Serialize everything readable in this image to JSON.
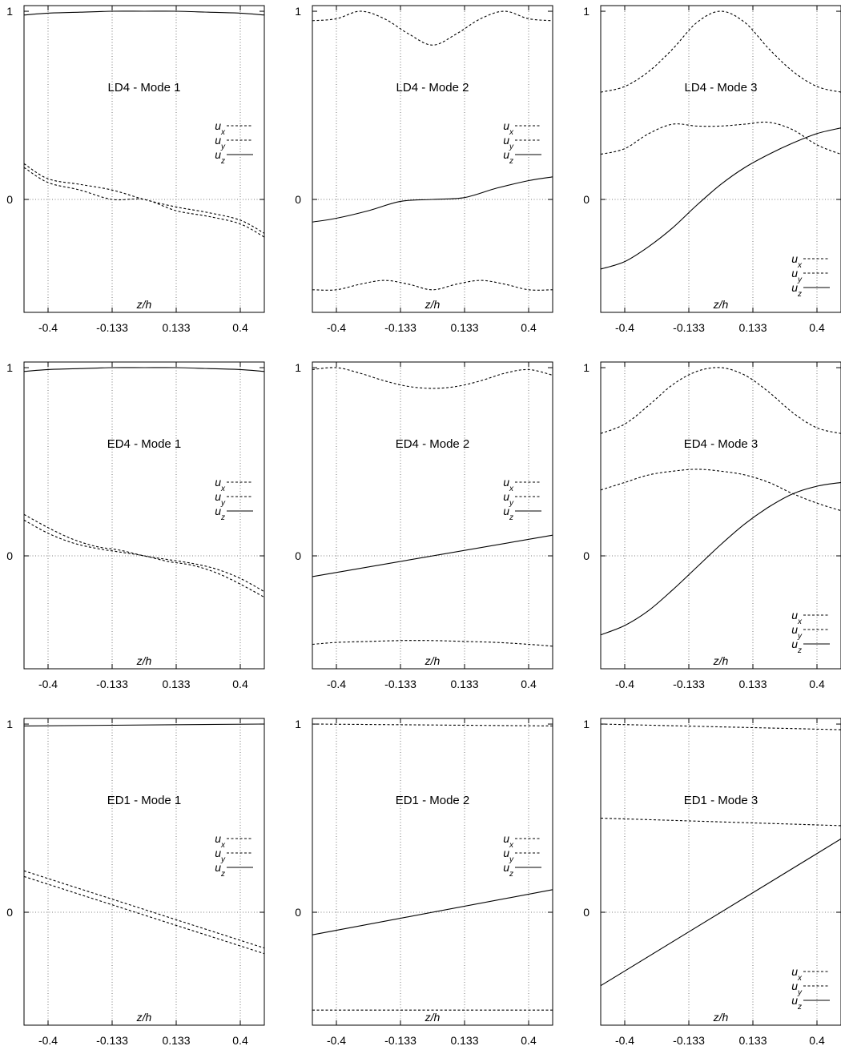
{
  "chart_data": [
    {
      "type": "line",
      "title": "LD4 - Mode 1",
      "xlabel": "z/h",
      "xlim": [
        -0.5,
        0.5
      ],
      "ylim": [
        -0.6,
        1.03
      ],
      "xticks": [
        "-0.4",
        "-0.133",
        "0.133",
        "0.4"
      ],
      "yticks": [
        "0",
        "1"
      ],
      "grid": true,
      "legend": {
        "placement": "right-middle",
        "entries": [
          {
            "base": "u",
            "sub": "x"
          },
          {
            "base": "u",
            "sub": "y"
          },
          {
            "base": "u",
            "sub": "z"
          }
        ]
      },
      "series": [
        {
          "style": "dashed",
          "x": [
            -0.5,
            -0.4,
            -0.267,
            -0.133,
            0.0,
            0.133,
            0.267,
            0.4,
            0.5
          ],
          "y": [
            0.19,
            0.11,
            0.08,
            0.05,
            0.0,
            -0.04,
            -0.07,
            -0.11,
            -0.18
          ]
        },
        {
          "style": "dashed",
          "x": [
            -0.5,
            -0.4,
            -0.267,
            -0.133,
            0.0,
            0.133,
            0.267,
            0.4,
            0.5
          ],
          "y": [
            0.17,
            0.09,
            0.05,
            0.0,
            0.0,
            -0.06,
            -0.09,
            -0.13,
            -0.2
          ]
        },
        {
          "style": "solid",
          "x": [
            -0.5,
            -0.4,
            -0.267,
            -0.133,
            0.0,
            0.133,
            0.267,
            0.4,
            0.5
          ],
          "y": [
            0.98,
            0.99,
            0.995,
            1.0,
            1.0,
            1.0,
            0.995,
            0.99,
            0.98
          ]
        }
      ]
    },
    {
      "type": "line",
      "title": "LD4 - Mode 2",
      "xlabel": "z/h",
      "xlim": [
        -0.5,
        0.5
      ],
      "ylim": [
        -0.6,
        1.03
      ],
      "xticks": [
        "-0.4",
        "-0.133",
        "0.133",
        "0.4"
      ],
      "yticks": [
        "0",
        "1"
      ],
      "grid": true,
      "legend": {
        "placement": "right-middle",
        "entries": [
          {
            "base": "u",
            "sub": "x"
          },
          {
            "base": "u",
            "sub": "y"
          },
          {
            "base": "u",
            "sub": "z"
          }
        ]
      },
      "series": [
        {
          "style": "dashed",
          "x": [
            -0.5,
            -0.4,
            -0.3,
            -0.2,
            -0.1,
            0.0,
            0.1,
            0.2,
            0.3,
            0.4,
            0.5
          ],
          "y": [
            0.95,
            0.96,
            1.0,
            0.96,
            0.88,
            0.82,
            0.88,
            0.96,
            1.0,
            0.96,
            0.95
          ]
        },
        {
          "style": "dashed",
          "x": [
            -0.5,
            -0.4,
            -0.3,
            -0.2,
            -0.1,
            0.0,
            0.1,
            0.2,
            0.3,
            0.4,
            0.5
          ],
          "y": [
            -0.48,
            -0.48,
            -0.45,
            -0.43,
            -0.45,
            -0.48,
            -0.45,
            -0.43,
            -0.45,
            -0.48,
            -0.48
          ]
        },
        {
          "style": "solid",
          "x": [
            -0.5,
            -0.4,
            -0.267,
            -0.133,
            0.0,
            0.133,
            0.267,
            0.4,
            0.5
          ],
          "y": [
            -0.12,
            -0.1,
            -0.06,
            -0.01,
            0.0,
            0.01,
            0.06,
            0.1,
            0.12
          ]
        }
      ]
    },
    {
      "type": "line",
      "title": "LD4 - Mode 3",
      "xlabel": "z/h",
      "xlim": [
        -0.5,
        0.5
      ],
      "ylim": [
        -0.6,
        1.03
      ],
      "xticks": [
        "-0.4",
        "-0.133",
        "0.133",
        "0.4"
      ],
      "yticks": [
        "0",
        "1"
      ],
      "grid": true,
      "legend": {
        "placement": "bottom-right",
        "entries": [
          {
            "base": "u",
            "sub": "x"
          },
          {
            "base": "u",
            "sub": "y"
          },
          {
            "base": "u",
            "sub": "z"
          }
        ]
      },
      "series": [
        {
          "style": "dashed",
          "x": [
            -0.5,
            -0.4,
            -0.3,
            -0.2,
            -0.1,
            0.0,
            0.1,
            0.2,
            0.3,
            0.4,
            0.5
          ],
          "y": [
            0.57,
            0.6,
            0.68,
            0.8,
            0.94,
            1.0,
            0.94,
            0.8,
            0.68,
            0.6,
            0.57
          ]
        },
        {
          "style": "dashed",
          "x": [
            -0.5,
            -0.4,
            -0.3,
            -0.2,
            -0.1,
            0.0,
            0.1,
            0.2,
            0.3,
            0.4,
            0.5
          ],
          "y": [
            0.24,
            0.27,
            0.35,
            0.4,
            0.39,
            0.39,
            0.4,
            0.41,
            0.37,
            0.29,
            0.24
          ]
        },
        {
          "style": "solid",
          "x": [
            -0.5,
            -0.4,
            -0.3,
            -0.2,
            -0.1,
            0.0,
            0.1,
            0.2,
            0.3,
            0.4,
            0.5
          ],
          "y": [
            -0.37,
            -0.33,
            -0.25,
            -0.15,
            -0.03,
            0.08,
            0.17,
            0.24,
            0.3,
            0.35,
            0.38
          ]
        }
      ]
    },
    {
      "type": "line",
      "title": "ED4 - Mode 1",
      "xlabel": "z/h",
      "xlim": [
        -0.5,
        0.5
      ],
      "ylim": [
        -0.6,
        1.03
      ],
      "xticks": [
        "-0.4",
        "-0.133",
        "0.133",
        "0.4"
      ],
      "yticks": [
        "0",
        "1"
      ],
      "grid": true,
      "legend": {
        "placement": "right-middle",
        "entries": [
          {
            "base": "u",
            "sub": "x"
          },
          {
            "base": "u",
            "sub": "y"
          },
          {
            "base": "u",
            "sub": "z"
          }
        ]
      },
      "series": [
        {
          "style": "dashed",
          "x": [
            -0.5,
            -0.4,
            -0.3,
            -0.2,
            -0.1,
            0.0,
            0.1,
            0.2,
            0.3,
            0.4,
            0.5
          ],
          "y": [
            0.22,
            0.15,
            0.09,
            0.05,
            0.03,
            0.0,
            -0.02,
            -0.04,
            -0.07,
            -0.12,
            -0.19
          ]
        },
        {
          "style": "dashed",
          "x": [
            -0.5,
            -0.4,
            -0.3,
            -0.2,
            -0.1,
            0.0,
            0.1,
            0.2,
            0.3,
            0.4,
            0.5
          ],
          "y": [
            0.19,
            0.12,
            0.07,
            0.04,
            0.02,
            0.0,
            -0.03,
            -0.05,
            -0.09,
            -0.15,
            -0.22
          ]
        },
        {
          "style": "solid",
          "x": [
            -0.5,
            -0.4,
            -0.267,
            -0.133,
            0.0,
            0.133,
            0.267,
            0.4,
            0.5
          ],
          "y": [
            0.98,
            0.99,
            0.995,
            1.0,
            1.0,
            1.0,
            0.995,
            0.99,
            0.98
          ]
        }
      ]
    },
    {
      "type": "line",
      "title": "ED4 - Mode 2",
      "xlabel": "z/h",
      "xlim": [
        -0.5,
        0.5
      ],
      "ylim": [
        -0.6,
        1.03
      ],
      "xticks": [
        "-0.4",
        "-0.133",
        "0.133",
        "0.4"
      ],
      "yticks": [
        "0",
        "1"
      ],
      "grid": true,
      "legend": {
        "placement": "right-middle",
        "entries": [
          {
            "base": "u",
            "sub": "x"
          },
          {
            "base": "u",
            "sub": "y"
          },
          {
            "base": "u",
            "sub": "z"
          }
        ]
      },
      "series": [
        {
          "style": "dashed",
          "x": [
            -0.5,
            -0.4,
            -0.3,
            -0.2,
            -0.1,
            0.0,
            0.1,
            0.2,
            0.3,
            0.4,
            0.5
          ],
          "y": [
            0.99,
            1.0,
            0.97,
            0.93,
            0.9,
            0.89,
            0.9,
            0.93,
            0.97,
            0.99,
            0.96
          ]
        },
        {
          "style": "dashed",
          "x": [
            -0.5,
            -0.4,
            -0.267,
            -0.133,
            0.0,
            0.133,
            0.267,
            0.4,
            0.5
          ],
          "y": [
            -0.47,
            -0.46,
            -0.455,
            -0.45,
            -0.45,
            -0.455,
            -0.46,
            -0.47,
            -0.48
          ]
        },
        {
          "style": "solid",
          "x": [
            -0.5,
            0.5
          ],
          "y": [
            -0.11,
            0.11
          ]
        }
      ]
    },
    {
      "type": "line",
      "title": "ED4 - Mode 3",
      "xlabel": "z/h",
      "xlim": [
        -0.5,
        0.5
      ],
      "ylim": [
        -0.6,
        1.03
      ],
      "xticks": [
        "-0.4",
        "-0.133",
        "0.133",
        "0.4"
      ],
      "yticks": [
        "0",
        "1"
      ],
      "grid": true,
      "legend": {
        "placement": "bottom-right",
        "entries": [
          {
            "base": "u",
            "sub": "x"
          },
          {
            "base": "u",
            "sub": "y"
          },
          {
            "base": "u",
            "sub": "z"
          }
        ]
      },
      "series": [
        {
          "style": "dashed",
          "x": [
            -0.5,
            -0.4,
            -0.3,
            -0.2,
            -0.1,
            0.0,
            0.1,
            0.2,
            0.3,
            0.4,
            0.5
          ],
          "y": [
            0.65,
            0.7,
            0.8,
            0.91,
            0.98,
            1.0,
            0.96,
            0.87,
            0.76,
            0.68,
            0.65
          ]
        },
        {
          "style": "dashed",
          "x": [
            -0.5,
            -0.4,
            -0.3,
            -0.2,
            -0.1,
            0.0,
            0.1,
            0.2,
            0.3,
            0.4,
            0.5
          ],
          "y": [
            0.35,
            0.39,
            0.43,
            0.45,
            0.46,
            0.45,
            0.43,
            0.39,
            0.33,
            0.28,
            0.24
          ]
        },
        {
          "style": "solid",
          "x": [
            -0.5,
            -0.4,
            -0.3,
            -0.2,
            -0.1,
            0.0,
            0.1,
            0.2,
            0.3,
            0.4,
            0.5
          ],
          "y": [
            -0.42,
            -0.37,
            -0.29,
            -0.18,
            -0.06,
            0.06,
            0.17,
            0.26,
            0.33,
            0.37,
            0.39
          ]
        }
      ]
    },
    {
      "type": "line",
      "title": "ED1 - Mode 1",
      "xlabel": "z/h",
      "xlim": [
        -0.5,
        0.5
      ],
      "ylim": [
        -0.6,
        1.03
      ],
      "xticks": [
        "-0.4",
        "-0.133",
        "0.133",
        "0.4"
      ],
      "yticks": [
        "0",
        "1"
      ],
      "grid": true,
      "legend": {
        "placement": "right-middle",
        "entries": [
          {
            "base": "u",
            "sub": "x"
          },
          {
            "base": "u",
            "sub": "y"
          },
          {
            "base": "u",
            "sub": "z"
          }
        ]
      },
      "series": [
        {
          "style": "dashed",
          "x": [
            -0.5,
            0.5
          ],
          "y": [
            0.22,
            -0.19
          ]
        },
        {
          "style": "dashed",
          "x": [
            -0.5,
            0.5
          ],
          "y": [
            0.19,
            -0.22
          ]
        },
        {
          "style": "solid",
          "x": [
            -0.5,
            0.5
          ],
          "y": [
            0.99,
            1.0
          ]
        }
      ]
    },
    {
      "type": "line",
      "title": "ED1 - Mode 2",
      "xlabel": "z/h",
      "xlim": [
        -0.5,
        0.5
      ],
      "ylim": [
        -0.6,
        1.03
      ],
      "xticks": [
        "-0.4",
        "-0.133",
        "0.133",
        "0.4"
      ],
      "yticks": [
        "0",
        "1"
      ],
      "grid": true,
      "legend": {
        "placement": "right-middle",
        "entries": [
          {
            "base": "u",
            "sub": "x"
          },
          {
            "base": "u",
            "sub": "y"
          },
          {
            "base": "u",
            "sub": "z"
          }
        ]
      },
      "series": [
        {
          "style": "dashed",
          "x": [
            -0.5,
            0.5
          ],
          "y": [
            1.0,
            0.99
          ]
        },
        {
          "style": "dashed",
          "x": [
            -0.5,
            0.5
          ],
          "y": [
            -0.52,
            -0.52
          ]
        },
        {
          "style": "solid",
          "x": [
            -0.5,
            0.5
          ],
          "y": [
            -0.12,
            0.12
          ]
        }
      ]
    },
    {
      "type": "line",
      "title": "ED1 - Mode 3",
      "xlabel": "z/h",
      "xlim": [
        -0.5,
        0.5
      ],
      "ylim": [
        -0.6,
        1.03
      ],
      "xticks": [
        "-0.4",
        "-0.133",
        "0.133",
        "0.4"
      ],
      "yticks": [
        "0",
        "1"
      ],
      "grid": true,
      "legend": {
        "placement": "bottom-right",
        "entries": [
          {
            "base": "u",
            "sub": "x"
          },
          {
            "base": "u",
            "sub": "y"
          },
          {
            "base": "u",
            "sub": "z"
          }
        ]
      },
      "series": [
        {
          "style": "dashed",
          "x": [
            -0.5,
            0.5
          ],
          "y": [
            1.0,
            0.97
          ]
        },
        {
          "style": "dashed",
          "x": [
            -0.5,
            0.5
          ],
          "y": [
            0.5,
            0.46
          ]
        },
        {
          "style": "solid",
          "x": [
            -0.5,
            0.5
          ],
          "y": [
            -0.39,
            0.39
          ]
        }
      ]
    }
  ]
}
